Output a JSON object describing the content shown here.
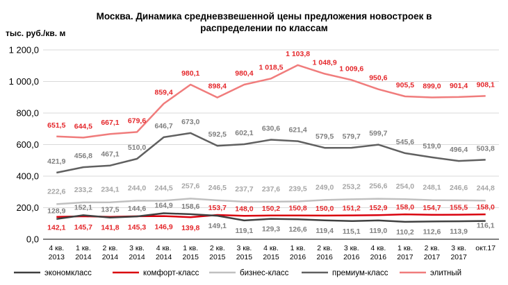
{
  "title_line1": "Москва. Динамика средневзвешенной цены предложения новостроек в",
  "title_line2": "распределении по классам",
  "unit_label": "тыс. руб./кв. м",
  "chart_data": {
    "type": "line",
    "title": "Москва. Динамика средневзвешенной цены предложения новостроек в распределении по классам",
    "ylabel": "тыс. руб./кв. м",
    "ylim": [
      0,
      1200
    ],
    "yticks": [
      "0,0",
      "200,0",
      "400,0",
      "600,0",
      "800,0",
      "1 000,0",
      "1 200,0"
    ],
    "grid": true,
    "legend_position": "bottom",
    "categories": [
      [
        "4 кв.",
        "2013"
      ],
      [
        "1 кв.",
        "2014"
      ],
      [
        "2 кв.",
        "2014"
      ],
      [
        "3 кв.",
        "2014"
      ],
      [
        "4 кв.",
        "2014"
      ],
      [
        "1 кв.",
        "2015"
      ],
      [
        "2 кв.",
        "2015"
      ],
      [
        "3 кв.",
        "2015"
      ],
      [
        "4 кв.",
        "2015"
      ],
      [
        "1 кв.",
        "2016"
      ],
      [
        "2 кв.",
        "2016"
      ],
      [
        "3 кв.",
        "2016"
      ],
      [
        "4 кв.",
        "2016"
      ],
      [
        "1 кв.",
        "2017"
      ],
      [
        "2 кв.",
        "2017"
      ],
      [
        "3 кв.",
        "2017"
      ],
      [
        "окт.17"
      ]
    ],
    "series": [
      {
        "name": "элитный",
        "color": "#f07c7c",
        "label_color": "#e4262a",
        "values": [
          651.5,
          644.5,
          667.1,
          679.6,
          859.4,
          980.1,
          898.4,
          980.4,
          1018.5,
          1103.8,
          1048.9,
          1009.6,
          950.6,
          905.5,
          899.0,
          901.4,
          908.1
        ],
        "labels": [
          "651,5",
          "644,5",
          "667,1",
          "679,6",
          "859,4",
          "980,1",
          "898,4",
          "980,4",
          "1 018,5",
          "1 103,8",
          "1 048,9",
          "1 009,6",
          "950,6",
          "905,5",
          "899,0",
          "901,4",
          "908,1"
        ]
      },
      {
        "name": "премиум-класс",
        "color": "#606060",
        "label_color": "#7f7f7f",
        "values": [
          421.9,
          456.8,
          467.1,
          510.0,
          646.7,
          673.0,
          592.5,
          602.1,
          630.6,
          621.4,
          579.5,
          579.7,
          599.7,
          545.6,
          519.0,
          496.4,
          503.8
        ],
        "labels": [
          "421,9",
          "456,8",
          "467,1",
          "510,0",
          "646,7",
          "673,0",
          "592,5",
          "602,1",
          "630,6",
          "621,4",
          "579,5",
          "579,7",
          "599,7",
          "545,6",
          "519,0",
          "496,4",
          "503,8"
        ]
      },
      {
        "name": "бизнес-класс",
        "color": "#c0c0c0",
        "label_color": "#a6a6a6",
        "values": [
          222.6,
          233.2,
          234.1,
          244.0,
          244.5,
          257.6,
          246.5,
          237.7,
          237.6,
          239.5,
          249.0,
          253.2,
          256.6,
          254.0,
          248.1,
          246.6,
          244.8
        ],
        "labels": [
          "222,6",
          "233,2",
          "234,1",
          "244,0",
          "244,5",
          "257,6",
          "246,5",
          "237,7",
          "237,6",
          "239,5",
          "249,0",
          "253,2",
          "256,6",
          "254,0",
          "248,1",
          "246,6",
          "244,8"
        ]
      },
      {
        "name": "комфорт-класс",
        "color": "#d9000d",
        "label_color": "#e4262a",
        "values": [
          142.1,
          145.7,
          141.8,
          145.3,
          146.9,
          139.8,
          153.7,
          148.0,
          150.2,
          150.8,
          150.0,
          151.2,
          152.9,
          158.0,
          154.7,
          155.5,
          158.0
        ],
        "labels": [
          "142,1",
          "145,7",
          "141,8",
          "145,3",
          "146,9",
          "139,8",
          "153,7",
          "148,0",
          "150,2",
          "150,8",
          "150,0",
          "151,2",
          "152,9",
          "158,0",
          "154,7",
          "155,5",
          "158,0"
        ]
      },
      {
        "name": "экономкласс",
        "color": "#404040",
        "label_color": "#7f7f7f",
        "values": [
          128.9,
          152.1,
          137.5,
          144.6,
          164.9,
          158.6,
          149.1,
          119.1,
          129.3,
          126.6,
          119.4,
          115.1,
          119.0,
          110.2,
          112.6,
          113.9,
          116.1
        ],
        "labels": [
          "128,9",
          "152,1",
          "137,5",
          "144,6",
          "164,9",
          "158,6",
          "149,1",
          "119,1",
          "129,3",
          "126,6",
          "119,4",
          "115,1",
          "119,0",
          "110,2",
          "112,6",
          "113,9",
          "116,1"
        ]
      }
    ],
    "legend_order": [
      "экономкласс",
      "комфорт-класс",
      "бизнес-класс",
      "премиум-класс",
      "элитный"
    ]
  }
}
